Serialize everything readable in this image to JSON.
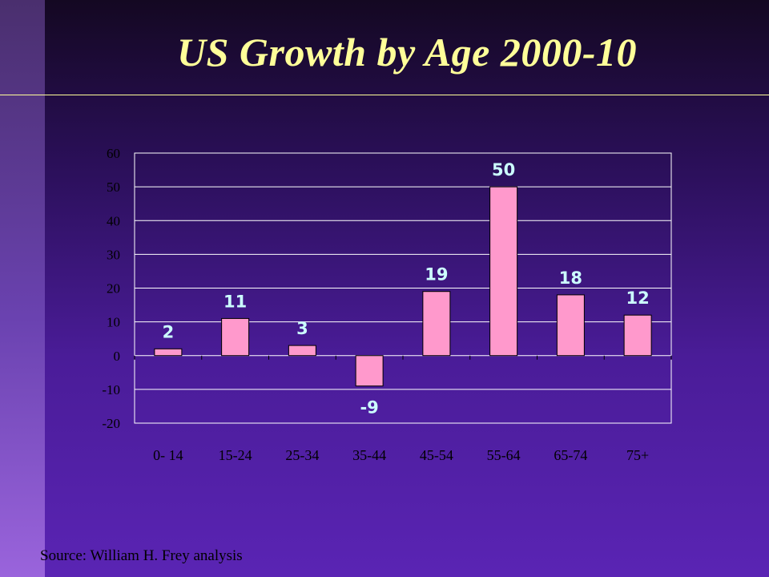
{
  "slide": {
    "title": "US Growth by Age 2000-10",
    "source": "Source: William H. Frey analysis"
  },
  "colors": {
    "bar": "#ff99cc",
    "data_label": "#ccffff",
    "title": "#ffff99",
    "axis_text": "#000000",
    "grid": "#ffffff"
  },
  "chart_data": {
    "type": "bar",
    "categories": [
      "0- 14",
      "15-24",
      "25-34",
      "35-44",
      "45-54",
      "55-64",
      "65-74",
      "75+"
    ],
    "values": [
      2,
      11,
      3,
      -9,
      19,
      50,
      18,
      12
    ],
    "data_labels": [
      "2",
      "11",
      "3",
      "-9",
      "19",
      "50",
      "18",
      "12"
    ],
    "ylim": [
      -20,
      60
    ],
    "yticks": [
      60,
      50,
      40,
      30,
      20,
      10,
      0,
      -10,
      -20
    ],
    "ytick_labels": [
      "60",
      "50",
      "40",
      "30",
      "20",
      "10",
      "0",
      "-10",
      "-20"
    ],
    "grid": true,
    "legend": "none",
    "xlabel": "",
    "ylabel": ""
  }
}
